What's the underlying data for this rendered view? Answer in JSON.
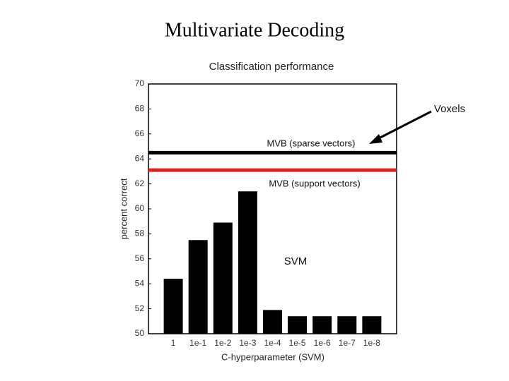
{
  "slide_title": "Multivariate Decoding",
  "chart_data": {
    "type": "bar",
    "title": "Classification performance",
    "x_label": "C-hyperparameter (SVM)",
    "y_label": "percent correct",
    "categories": [
      "1",
      "1e-1",
      "1e-2",
      "1e-3",
      "1e-4",
      "1e-5",
      "1e-6",
      "1e-7",
      "1e-8"
    ],
    "values": [
      54.4,
      57.5,
      58.9,
      61.4,
      51.9,
      51.4,
      51.4,
      51.4,
      51.4
    ],
    "color": "#000000",
    "ylim": [
      50,
      70
    ],
    "yticks": [
      50,
      52,
      54,
      56,
      58,
      60,
      62,
      64,
      66,
      68,
      70
    ],
    "reference_lines": [
      {
        "value": 64.5,
        "color": "#000000"
      },
      {
        "value": 63.1,
        "color": "#e0201b"
      }
    ],
    "annotations": [
      "MVB (sparse vectors)",
      "MVB (support vectors)",
      "SVM",
      "Voxels"
    ]
  }
}
